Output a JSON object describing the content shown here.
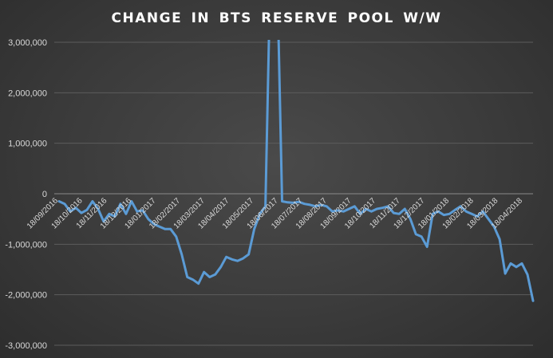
{
  "chart_data": {
    "type": "line",
    "title": "CHANGE IN BTS RESERVE POOL W/W",
    "xlabel": "",
    "ylabel": "",
    "ylim": [
      -3000000,
      3000000
    ],
    "yticks": [
      3000000,
      2000000,
      1000000,
      0,
      -1000000,
      -2000000,
      -3000000
    ],
    "ytick_labels": [
      "3,000,000",
      "2,000,000",
      "1,000,000",
      "0",
      "-1,000,000",
      "-2,000,000",
      "-3,000,000"
    ],
    "xtick_labels": [
      "18/09/2016",
      "18/10/2016",
      "18/11/2016",
      "18/12/2016",
      "18/01/2017",
      "18/02/2017",
      "18/03/2017",
      "18/04/2017",
      "18/05/2017",
      "18/06/2017",
      "18/07/2017",
      "18/08/2017",
      "18/09/2017",
      "18/10/2017",
      "18/11/2017",
      "18/12/2017",
      "18/01/2018",
      "18/02/2018",
      "18/03/2018",
      "18/04/2018"
    ],
    "grid": true,
    "legend": "none",
    "colors": {
      "line": "#5b9bd5",
      "text": "#d9d9d9",
      "title": "#ffffff"
    },
    "series": [
      {
        "values": [
          -150000,
          -200000,
          -350000,
          -280000,
          -380000,
          -320000,
          -150000,
          -300000,
          -550000,
          -400000,
          -450000,
          -200000,
          -400000,
          -150000,
          -350000,
          -330000,
          -500000,
          -600000,
          -650000,
          -700000,
          -700000,
          -850000,
          -1200000,
          -1650000,
          -1700000,
          -1780000,
          -1550000,
          -1650000,
          -1600000,
          -1450000,
          -1250000,
          -1300000,
          -1330000,
          -1280000,
          -1200000,
          -700000,
          -400000,
          -250000,
          5000000,
          5000000,
          -150000,
          -170000,
          -180000,
          -160000,
          -200000,
          -220000,
          -250000,
          -220000,
          -250000,
          -350000,
          -330000,
          -350000,
          -300000,
          -250000,
          -400000,
          -300000,
          -350000,
          -300000,
          -280000,
          -250000,
          -380000,
          -400000,
          -300000,
          -500000,
          -800000,
          -850000,
          -1050000,
          -400000,
          -350000,
          -420000,
          -400000,
          -320000,
          -250000,
          -350000,
          -400000,
          -450000,
          -350000,
          -500000,
          -650000,
          -900000,
          -1580000,
          -1380000,
          -1450000,
          -1380000,
          -1600000,
          -2120000
        ]
      }
    ]
  }
}
